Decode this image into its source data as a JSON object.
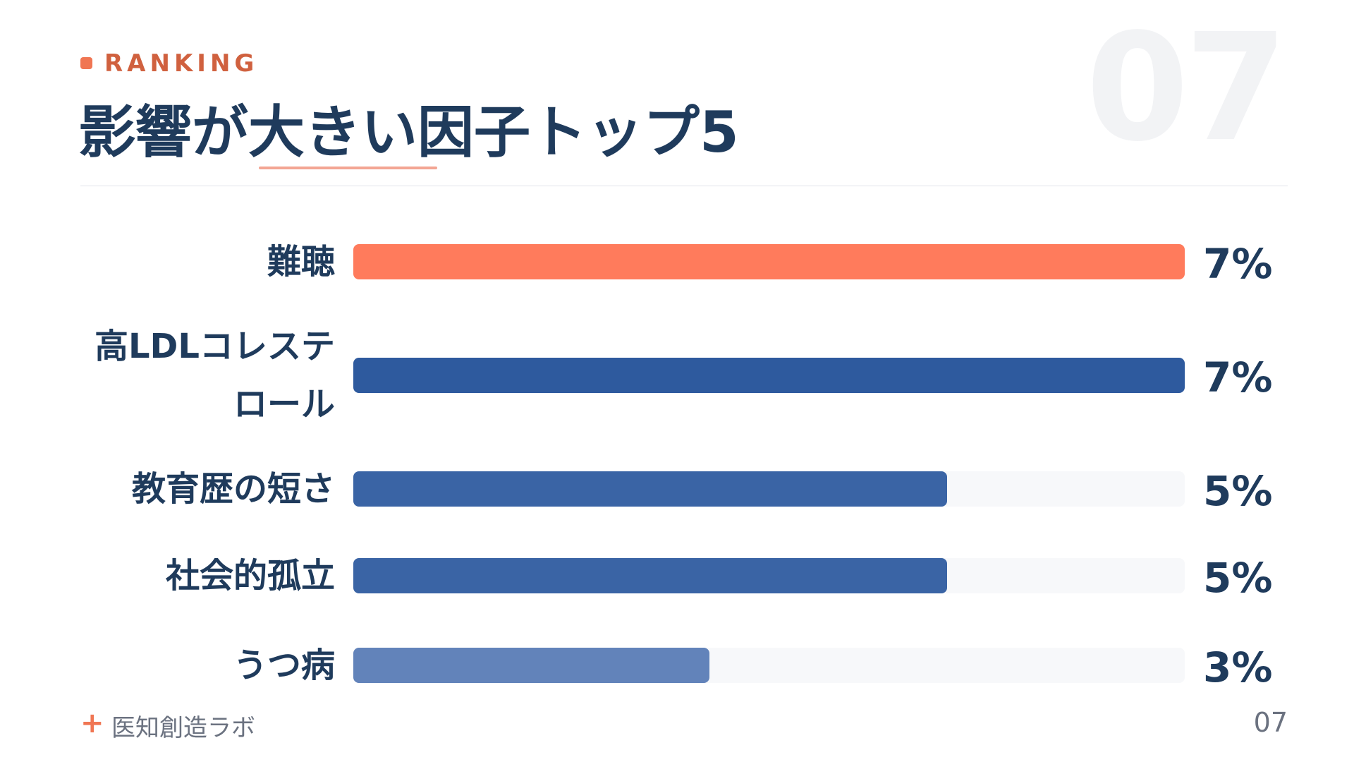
{
  "eyebrow": "RANKING",
  "watermark": "07",
  "footer": {
    "mark": "+",
    "brand": "医知創造ラボ",
    "page_number": "07"
  },
  "chart_data": {
    "type": "bar",
    "orientation": "horizontal",
    "title": "影響が大きい因子トップ5",
    "categories": [
      "難聴",
      "高LDLコレステロール",
      "教育歴の短さ",
      "社会的孤立",
      "うつ病"
    ],
    "values": [
      7,
      7,
      5,
      5,
      3
    ],
    "value_labels": [
      "7%",
      "7%",
      "5%",
      "5%",
      "3%"
    ],
    "colors": [
      "#ff7b5c",
      "#2e5a9e",
      "#3a64a5",
      "#3a64a5",
      "#6283ba"
    ],
    "track_color": "#f7f8fa"
  }
}
